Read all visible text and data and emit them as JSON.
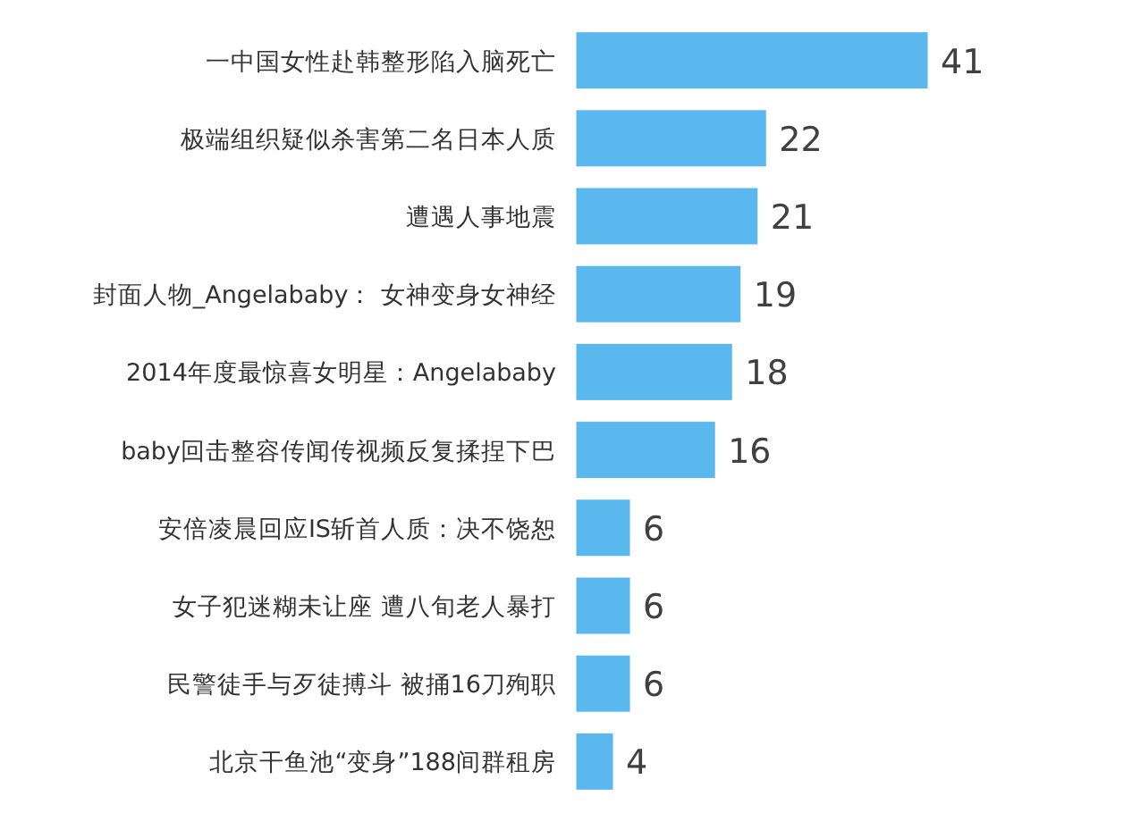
{
  "chart_data": {
    "type": "bar",
    "orientation": "horizontal",
    "data_labels": true,
    "color": "#5bb8ee",
    "categories": [
      "一中国女性赴韩整形陷入脑死亡",
      "极端组织疑似杀害第二名日本人质",
      "遭遇人事地震",
      "封面人物_Angelababy： 女神变身女神经",
      "2014年度最惊喜女明星：Angelababy",
      "baby回击整容传闻传视频反复揉捏下巴",
      "安倍凌晨回应IS斩首人质：决不饶恕",
      "女子犯迷糊未让座 遭八旬老人暴打",
      "民警徒手与歹徒搏斗 被捅16刀殉职",
      "北京干鱼池“变身”188间群租房"
    ],
    "values": [
      41,
      22,
      21,
      19,
      18,
      16,
      6,
      6,
      6,
      4
    ]
  }
}
